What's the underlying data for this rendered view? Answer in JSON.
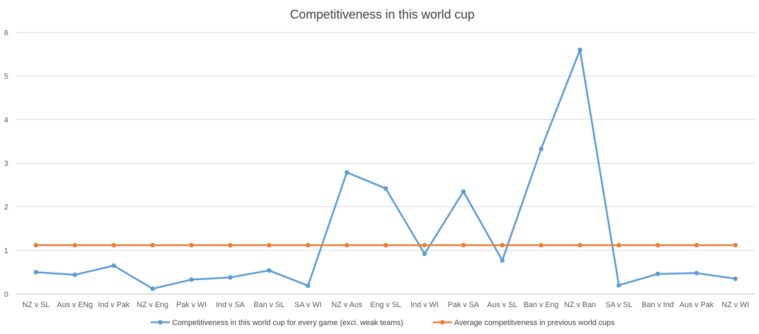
{
  "chart_data": {
    "type": "line",
    "title": "Competitiveness in this world cup",
    "xlabel": "",
    "ylabel": "",
    "ylim": [
      0,
      6
    ],
    "yticks": [
      "0",
      "1",
      "2",
      "3",
      "4",
      "5",
      "6"
    ],
    "grid": true,
    "legend_position": "bottom",
    "categories": [
      "NZ v SL",
      "Aus v ENg",
      "Ind v Pak",
      "NZ v Eng",
      "Pak v WI",
      "Ind v SA",
      "Ban v SL",
      "SA v WI",
      "NZ v Aus",
      "Eng v SL",
      "Ind v WI",
      "Pak v SA",
      "Aus v SL",
      "Ban v Eng",
      "NZ v Ban",
      "SA v SL",
      "Ban v Ind",
      "Aus v Pak",
      "NZ v WI"
    ],
    "series": [
      {
        "name": "Competitiveness in this world cup for every game (excl. weak teams)",
        "color": "#5B9BD5",
        "values": [
          0.5,
          0.44,
          0.65,
          0.12,
          0.33,
          0.38,
          0.54,
          0.19,
          2.79,
          2.42,
          0.92,
          2.35,
          0.77,
          3.33,
          5.6,
          0.2,
          0.46,
          0.48,
          0.35
        ]
      },
      {
        "name": "Average competitveness in previous world cups",
        "color": "#ED7D31",
        "values": [
          1.12,
          1.12,
          1.12,
          1.12,
          1.12,
          1.12,
          1.12,
          1.12,
          1.12,
          1.12,
          1.12,
          1.12,
          1.12,
          1.12,
          1.12,
          1.12,
          1.12,
          1.12,
          1.12
        ]
      }
    ]
  }
}
